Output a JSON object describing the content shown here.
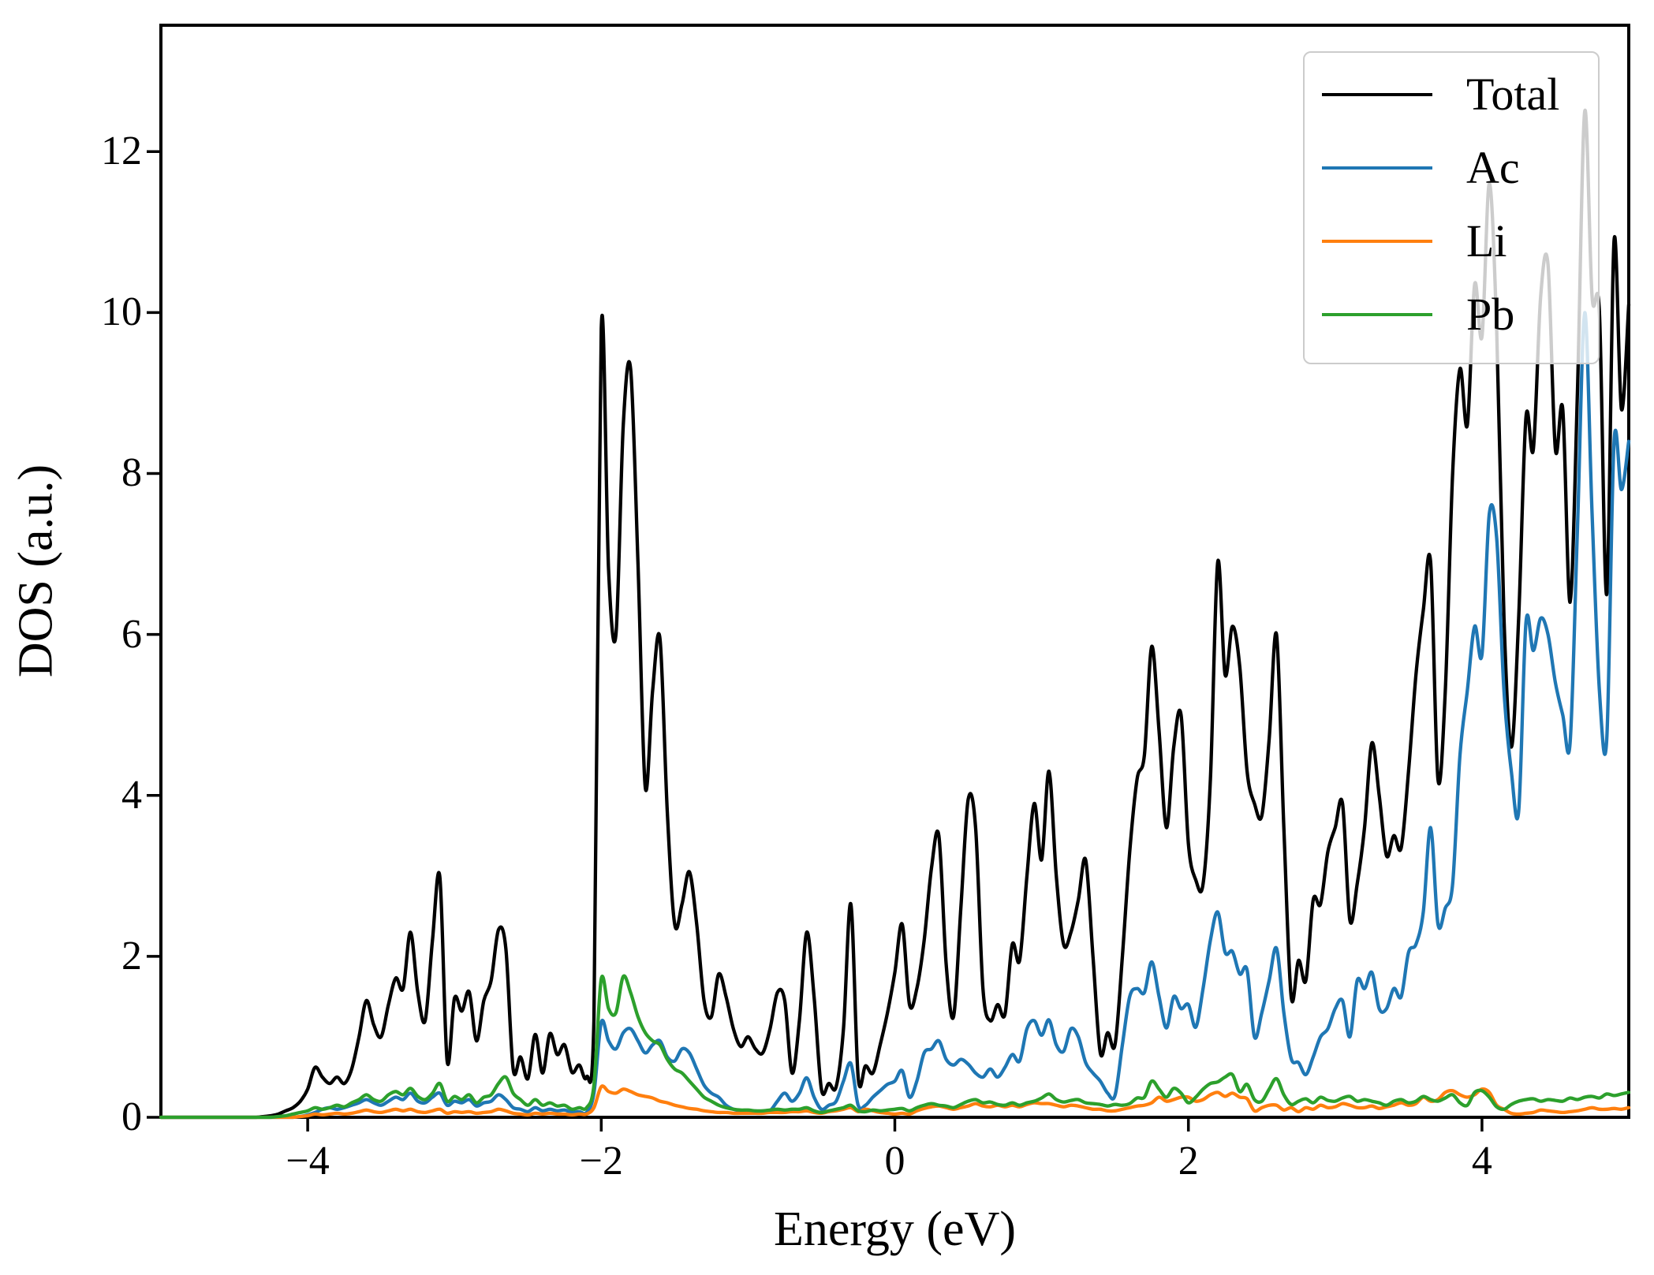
{
  "chart_data": {
    "type": "line",
    "title": "",
    "xlabel": "Energy (eV)",
    "ylabel": "DOS (a.u.)",
    "xlim": [
      -5,
      5
    ],
    "ylim": [
      0,
      13.57
    ],
    "grid": false,
    "legend_position": "upper right",
    "x_ticks": [
      -4,
      -2,
      0,
      2,
      4
    ],
    "x_tick_labels": [
      "−4",
      "−2",
      "0",
      "2",
      "4"
    ],
    "y_ticks": [
      0,
      2,
      4,
      6,
      8,
      10,
      12
    ],
    "y_tick_labels": [
      "0",
      "2",
      "4",
      "6",
      "8",
      "10",
      "12"
    ],
    "axis_color": "#000000",
    "legend_border_color": "#cccccc",
    "e_start": -5,
    "e_step": 0.05,
    "series": [
      {
        "name": "Total",
        "color": "#000000",
        "values": [
          0,
          0,
          0,
          0,
          0,
          0,
          0,
          0,
          0,
          0,
          0,
          0,
          0,
          0,
          0.01,
          0.02,
          0.04,
          0.08,
          0.12,
          0.2,
          0.35,
          0.62,
          0.5,
          0.42,
          0.5,
          0.42,
          0.6,
          1.0,
          1.45,
          1.15,
          1.0,
          1.4,
          1.73,
          1.6,
          2.3,
          1.55,
          1.2,
          2.2,
          2.99,
          0.7,
          1.48,
          1.32,
          1.56,
          0.95,
          1.45,
          1.7,
          2.33,
          2.1,
          0.6,
          0.75,
          0.48,
          1.03,
          0.55,
          1.04,
          0.78,
          0.9,
          0.56,
          0.65,
          0.5,
          1.2,
          9.8,
          6.8,
          6.0,
          8.6,
          9.3,
          6.9,
          4.1,
          5.3,
          5.95,
          3.8,
          2.4,
          2.65,
          3.05,
          2.4,
          1.45,
          1.25,
          1.78,
          1.5,
          1.1,
          0.88,
          1.0,
          0.85,
          0.8,
          1.1,
          1.55,
          1.45,
          0.55,
          1.2,
          2.3,
          1.5,
          0.35,
          0.42,
          0.38,
          1.1,
          2.65,
          0.5,
          0.64,
          0.55,
          0.9,
          1.3,
          1.8,
          2.4,
          1.4,
          1.6,
          2.2,
          3.1,
          3.5,
          1.9,
          1.25,
          2.6,
          3.95,
          3.6,
          1.6,
          1.2,
          1.4,
          1.28,
          2.15,
          1.95,
          3.0,
          3.9,
          3.2,
          4.3,
          3.0,
          2.15,
          2.3,
          2.7,
          3.2,
          2.0,
          0.8,
          1.05,
          0.9,
          2.0,
          3.3,
          4.2,
          4.5,
          5.85,
          4.8,
          3.6,
          4.6,
          5.0,
          3.4,
          2.95,
          2.9,
          4.2,
          6.9,
          5.5,
          6.1,
          5.6,
          4.3,
          3.9,
          3.75,
          4.7,
          6.0,
          3.6,
          1.5,
          1.95,
          1.7,
          2.7,
          2.65,
          3.3,
          3.6,
          3.9,
          2.45,
          2.9,
          3.6,
          4.65,
          4.0,
          3.25,
          3.5,
          3.35,
          4.3,
          5.5,
          6.3,
          6.9,
          4.2,
          5.3,
          8.0,
          9.3,
          8.6,
          10.35,
          9.7,
          11.6,
          9.8,
          6.2,
          4.6,
          6.2,
          8.7,
          8.3,
          10.2,
          10.6,
          8.3,
          8.8,
          6.4,
          9.0,
          12.5,
          10.2,
          10.0,
          6.5,
          10.9,
          8.8,
          10.1
        ]
      },
      {
        "name": "Ac",
        "color": "#1f77b4",
        "values": [
          0,
          0,
          0,
          0,
          0,
          0,
          0,
          0,
          0,
          0,
          0,
          0,
          0,
          0,
          0,
          0,
          0,
          0,
          0,
          0.01,
          0.03,
          0.06,
          0.1,
          0.12,
          0.1,
          0.12,
          0.15,
          0.18,
          0.22,
          0.18,
          0.15,
          0.2,
          0.25,
          0.22,
          0.3,
          0.2,
          0.18,
          0.25,
          0.3,
          0.15,
          0.2,
          0.18,
          0.22,
          0.14,
          0.18,
          0.2,
          0.28,
          0.22,
          0.12,
          0.1,
          0.07,
          0.12,
          0.08,
          0.1,
          0.08,
          0.09,
          0.06,
          0.07,
          0.06,
          0.3,
          1.18,
          0.95,
          0.85,
          1.05,
          1.1,
          0.95,
          0.8,
          0.9,
          0.95,
          0.75,
          0.7,
          0.85,
          0.8,
          0.6,
          0.4,
          0.3,
          0.25,
          0.15,
          0.1,
          0.08,
          0.07,
          0.06,
          0.06,
          0.08,
          0.2,
          0.3,
          0.2,
          0.3,
          0.49,
          0.25,
          0.1,
          0.15,
          0.2,
          0.45,
          0.67,
          0.15,
          0.15,
          0.25,
          0.33,
          0.41,
          0.45,
          0.58,
          0.25,
          0.45,
          0.8,
          0.85,
          0.95,
          0.72,
          0.65,
          0.72,
          0.66,
          0.55,
          0.5,
          0.6,
          0.5,
          0.62,
          0.78,
          0.7,
          1.1,
          1.2,
          1.02,
          1.21,
          0.9,
          0.82,
          1.1,
          1.0,
          0.68,
          0.55,
          0.45,
          0.3,
          0.27,
          0.9,
          1.5,
          1.6,
          1.55,
          1.93,
          1.5,
          1.11,
          1.5,
          1.35,
          1.4,
          1.12,
          1.6,
          2.2,
          2.55,
          2.05,
          2.06,
          1.78,
          1.83,
          1.0,
          1.3,
          1.7,
          2.1,
          1.3,
          0.73,
          0.68,
          0.53,
          0.75,
          1.0,
          1.1,
          1.35,
          1.45,
          1.0,
          1.7,
          1.6,
          1.8,
          1.35,
          1.35,
          1.6,
          1.5,
          2.05,
          2.15,
          2.55,
          3.6,
          2.4,
          2.6,
          2.9,
          4.5,
          5.3,
          6.1,
          5.75,
          7.5,
          7.2,
          5.3,
          4.3,
          3.8,
          6.15,
          5.8,
          6.2,
          6.0,
          5.4,
          5.0,
          4.65,
          7.3,
          10.0,
          7.5,
          5.3,
          4.7,
          8.4,
          7.8,
          8.4
        ]
      },
      {
        "name": "Li",
        "color": "#ff7f0e",
        "values": [
          0,
          0,
          0,
          0,
          0,
          0,
          0,
          0,
          0,
          0,
          0,
          0,
          0,
          0,
          0,
          0,
          0,
          0,
          0,
          0.01,
          0.02,
          0.04,
          0.03,
          0.04,
          0.05,
          0.04,
          0.05,
          0.07,
          0.09,
          0.07,
          0.06,
          0.08,
          0.1,
          0.08,
          0.1,
          0.07,
          0.06,
          0.08,
          0.1,
          0.05,
          0.07,
          0.06,
          0.07,
          0.05,
          0.06,
          0.07,
          0.1,
          0.08,
          0.05,
          0.04,
          0.03,
          0.05,
          0.04,
          0.05,
          0.04,
          0.04,
          0.03,
          0.04,
          0.04,
          0.12,
          0.38,
          0.32,
          0.3,
          0.35,
          0.32,
          0.28,
          0.26,
          0.24,
          0.2,
          0.18,
          0.15,
          0.13,
          0.11,
          0.1,
          0.08,
          0.07,
          0.06,
          0.06,
          0.05,
          0.05,
          0.05,
          0.05,
          0.05,
          0.06,
          0.06,
          0.06,
          0.07,
          0.07,
          0.08,
          0.06,
          0.05,
          0.07,
          0.08,
          0.1,
          0.12,
          0.07,
          0.1,
          0.08,
          0.06,
          0.05,
          0.04,
          0.05,
          0.04,
          0.08,
          0.11,
          0.13,
          0.14,
          0.12,
          0.1,
          0.12,
          0.14,
          0.17,
          0.14,
          0.13,
          0.15,
          0.13,
          0.15,
          0.13,
          0.16,
          0.18,
          0.17,
          0.17,
          0.15,
          0.13,
          0.15,
          0.14,
          0.12,
          0.1,
          0.1,
          0.08,
          0.08,
          0.1,
          0.12,
          0.14,
          0.15,
          0.18,
          0.25,
          0.2,
          0.22,
          0.25,
          0.25,
          0.2,
          0.22,
          0.28,
          0.31,
          0.26,
          0.3,
          0.25,
          0.23,
          0.08,
          0.12,
          0.15,
          0.15,
          0.09,
          0.12,
          0.07,
          0.12,
          0.1,
          0.15,
          0.12,
          0.13,
          0.17,
          0.15,
          0.12,
          0.12,
          0.14,
          0.11,
          0.13,
          0.15,
          0.18,
          0.15,
          0.17,
          0.25,
          0.2,
          0.22,
          0.31,
          0.33,
          0.28,
          0.25,
          0.28,
          0.35,
          0.31,
          0.15,
          0.1,
          0.05,
          0.04,
          0.05,
          0.06,
          0.09,
          0.08,
          0.07,
          0.06,
          0.07,
          0.08,
          0.1,
          0.12,
          0.1,
          0.1,
          0.11,
          0.1,
          0.12
        ]
      },
      {
        "name": "Pb",
        "color": "#2ca02c",
        "values": [
          0,
          0,
          0,
          0,
          0,
          0,
          0,
          0,
          0,
          0,
          0,
          0,
          0,
          0,
          0,
          0,
          0.01,
          0.02,
          0.04,
          0.06,
          0.08,
          0.12,
          0.1,
          0.12,
          0.15,
          0.13,
          0.18,
          0.22,
          0.28,
          0.22,
          0.2,
          0.28,
          0.32,
          0.28,
          0.36,
          0.26,
          0.22,
          0.3,
          0.42,
          0.2,
          0.26,
          0.22,
          0.28,
          0.18,
          0.25,
          0.28,
          0.42,
          0.5,
          0.3,
          0.22,
          0.15,
          0.22,
          0.15,
          0.18,
          0.14,
          0.15,
          0.1,
          0.12,
          0.12,
          0.4,
          1.72,
          1.35,
          1.3,
          1.75,
          1.55,
          1.25,
          1.05,
          0.95,
          0.9,
          0.72,
          0.6,
          0.55,
          0.45,
          0.35,
          0.25,
          0.2,
          0.15,
          0.12,
          0.1,
          0.09,
          0.09,
          0.08,
          0.08,
          0.09,
          0.1,
          0.09,
          0.1,
          0.1,
          0.12,
          0.08,
          0.06,
          0.08,
          0.1,
          0.12,
          0.15,
          0.08,
          0.07,
          0.09,
          0.08,
          0.09,
          0.1,
          0.11,
          0.08,
          0.12,
          0.15,
          0.17,
          0.15,
          0.14,
          0.12,
          0.16,
          0.2,
          0.22,
          0.18,
          0.19,
          0.16,
          0.15,
          0.18,
          0.15,
          0.18,
          0.2,
          0.24,
          0.29,
          0.22,
          0.19,
          0.21,
          0.22,
          0.18,
          0.17,
          0.16,
          0.14,
          0.16,
          0.15,
          0.17,
          0.24,
          0.25,
          0.45,
          0.35,
          0.25,
          0.36,
          0.3,
          0.18,
          0.25,
          0.35,
          0.42,
          0.44,
          0.5,
          0.53,
          0.32,
          0.41,
          0.22,
          0.2,
          0.35,
          0.48,
          0.28,
          0.16,
          0.2,
          0.23,
          0.18,
          0.25,
          0.21,
          0.2,
          0.24,
          0.26,
          0.2,
          0.22,
          0.2,
          0.18,
          0.15,
          0.2,
          0.22,
          0.18,
          0.2,
          0.26,
          0.22,
          0.2,
          0.24,
          0.28,
          0.18,
          0.15,
          0.31,
          0.33,
          0.25,
          0.13,
          0.1,
          0.16,
          0.2,
          0.22,
          0.23,
          0.2,
          0.22,
          0.21,
          0.2,
          0.24,
          0.22,
          0.25,
          0.26,
          0.24,
          0.29,
          0.27,
          0.29,
          0.31
        ]
      }
    ]
  }
}
